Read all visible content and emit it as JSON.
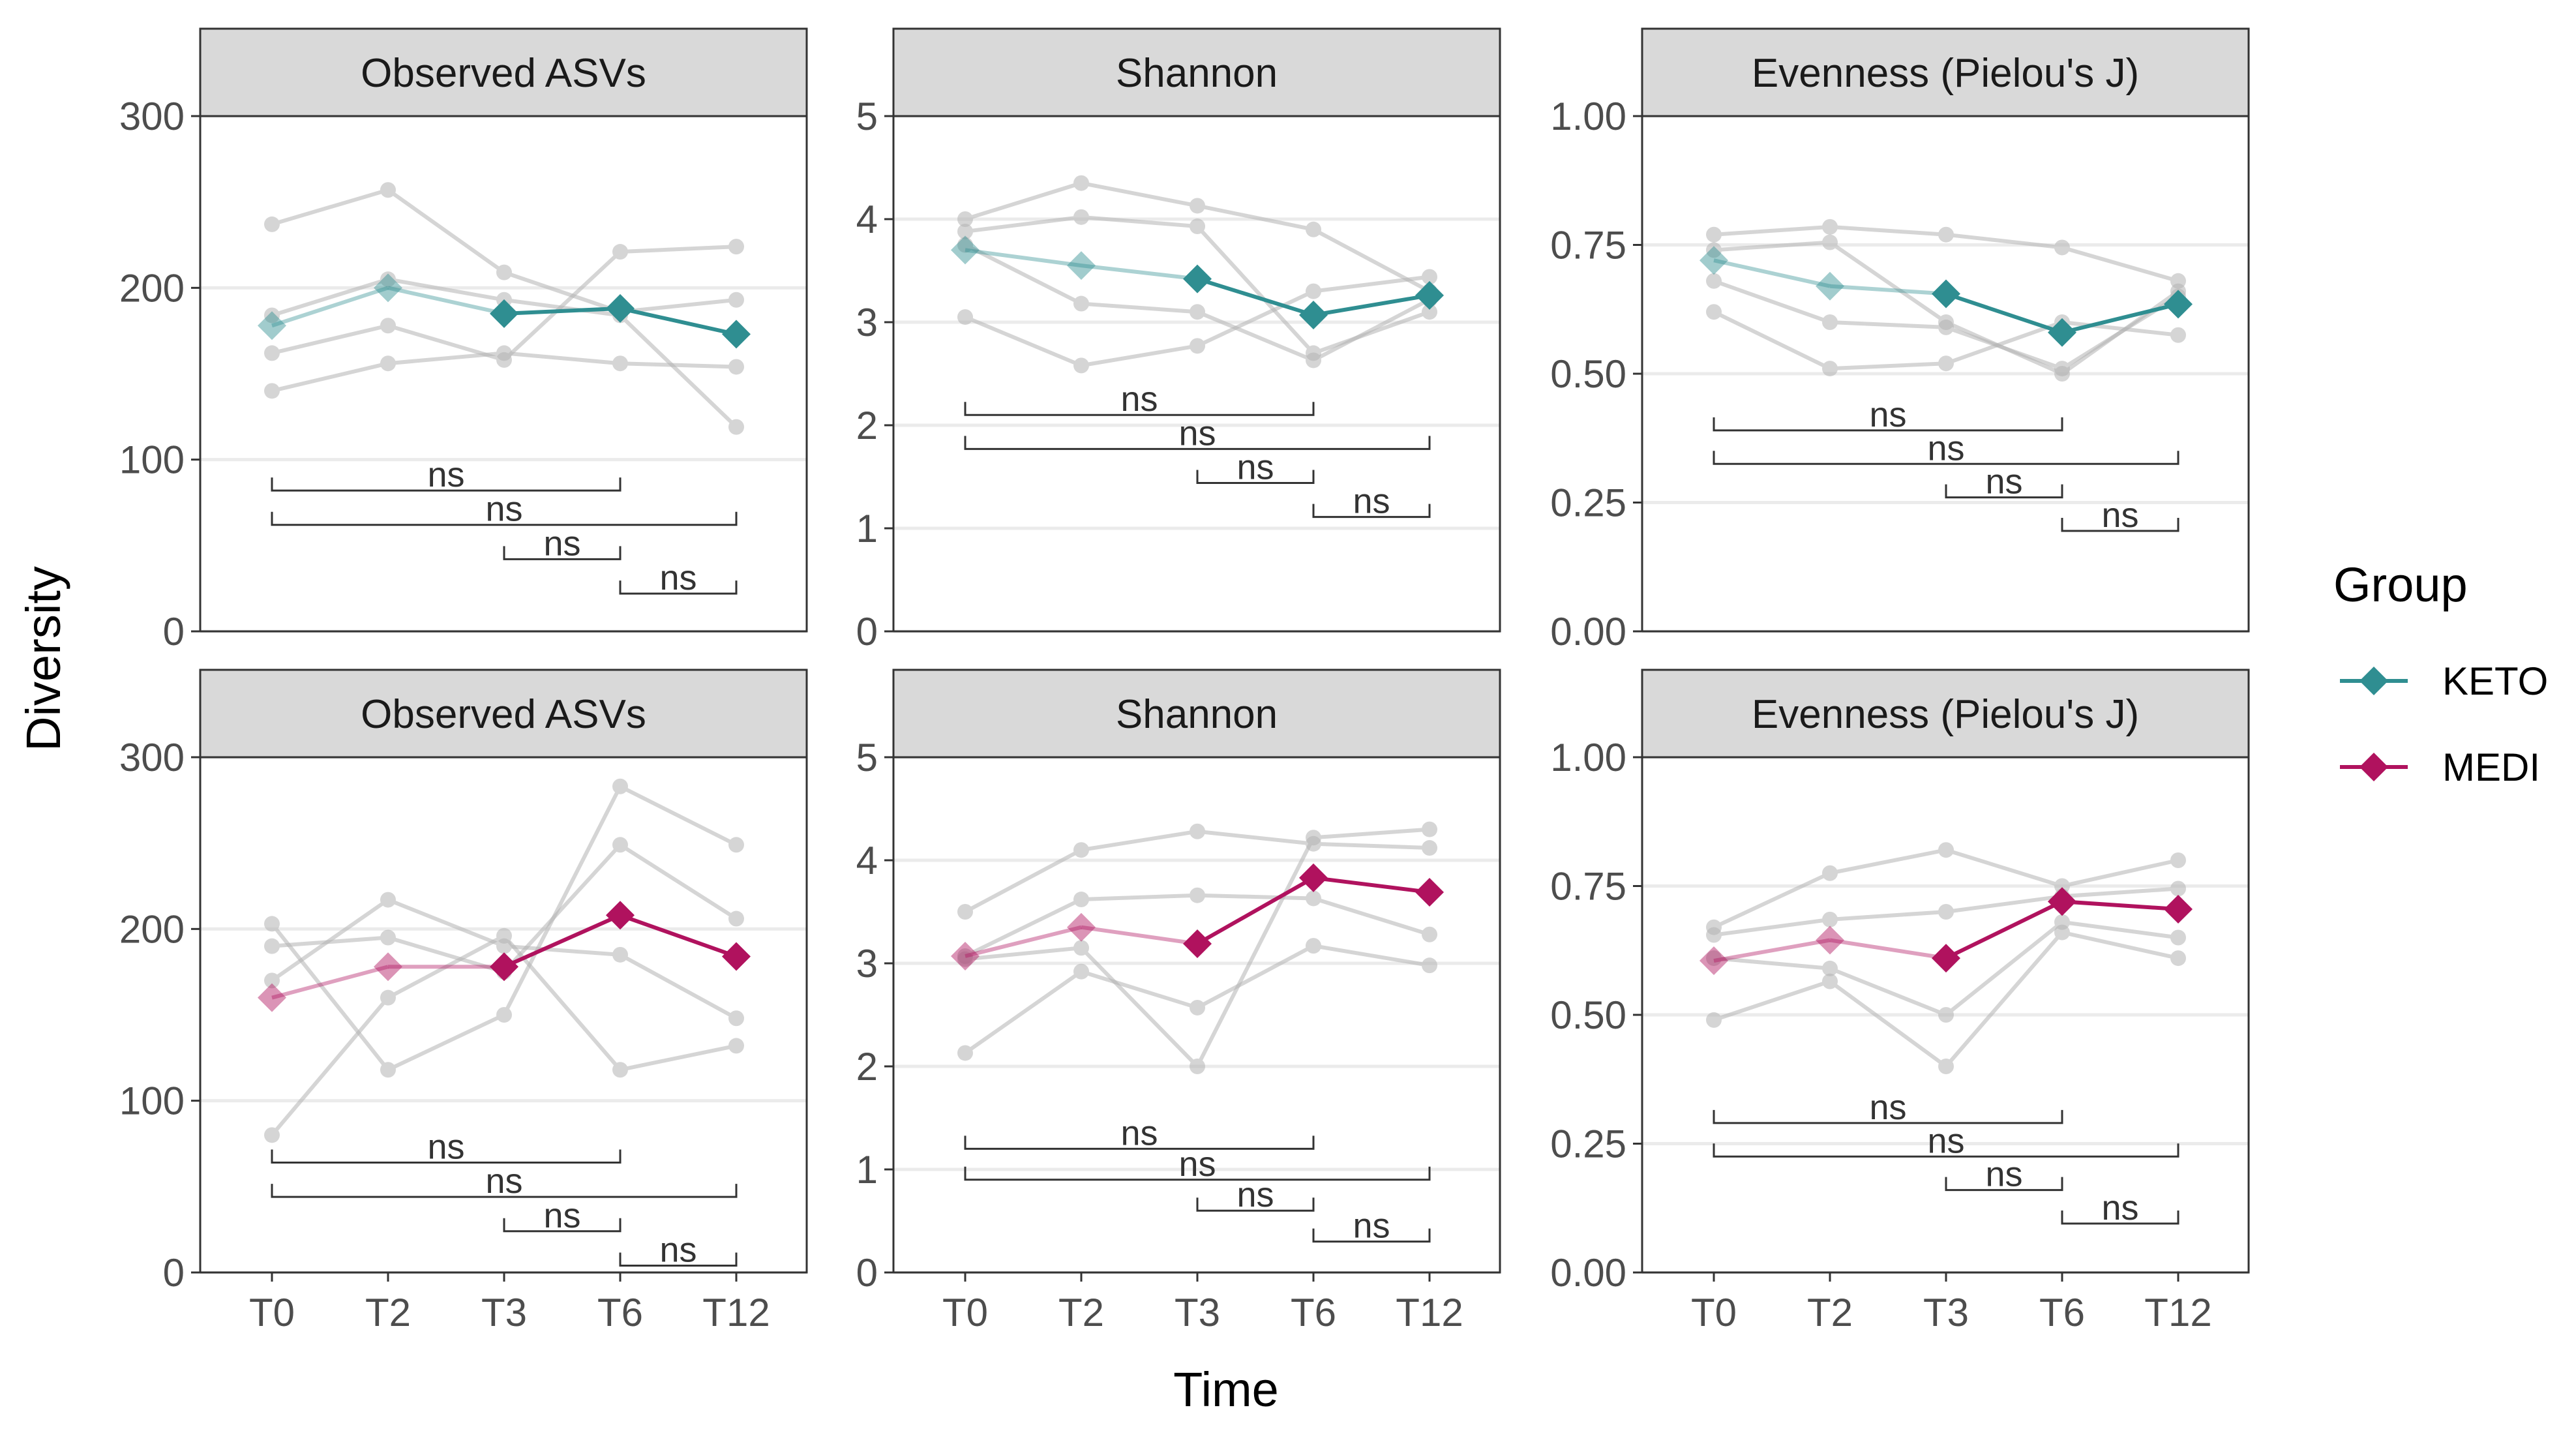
{
  "chart_data": {
    "type": "line",
    "layout": "faceted 2x3",
    "xlabel": "Time",
    "ylabel": "Diversity",
    "categories": [
      "T0",
      "T2",
      "T3",
      "T6",
      "T12"
    ],
    "legend": {
      "title": "Group",
      "placement": "right",
      "entries": [
        {
          "name": "KETO",
          "color": "#2f8e91"
        },
        {
          "name": "MEDI",
          "color": "#b0125e"
        }
      ]
    },
    "metrics": [
      {
        "id": "observed",
        "title": "Observed ASVs",
        "ylim": [
          0,
          300
        ],
        "ticks": [
          0,
          100,
          200,
          300
        ],
        "decimals": 0
      },
      {
        "id": "shannon",
        "title": "Shannon",
        "ylim": [
          0,
          5
        ],
        "ticks": [
          0,
          1,
          2,
          3,
          4,
          5
        ],
        "decimals": 0
      },
      {
        "id": "evenness",
        "title": "Evenness (Pielou's J)",
        "ylim": [
          0,
          1
        ],
        "ticks": [
          0,
          0.25,
          0.5,
          0.75,
          1
        ],
        "decimals": 2
      }
    ],
    "facets": [
      {
        "row": 0,
        "col": 0,
        "group": "KETO",
        "metric": "observed",
        "title": "Observed ASVs",
        "mean": [
          178,
          200,
          185,
          188,
          173
        ],
        "individuals": [
          [
            237,
            257,
            209,
            186,
            193
          ],
          [
            140,
            156,
            162,
            156,
            154
          ],
          [
            162,
            178,
            158,
            221,
            224
          ],
          [
            184,
            205,
            193,
            184,
            119
          ]
        ],
        "comparisons": [
          {
            "from": "T0",
            "to": "T6",
            "label": "ns",
            "level": 82
          },
          {
            "from": "T0",
            "to": "T12",
            "label": "ns",
            "level": 62
          },
          {
            "from": "T3",
            "to": "T6",
            "label": "ns",
            "level": 42
          },
          {
            "from": "T6",
            "to": "T12",
            "label": "ns",
            "level": 22
          }
        ]
      },
      {
        "row": 0,
        "col": 1,
        "group": "KETO",
        "metric": "shannon",
        "title": "Shannon",
        "mean": [
          3.7,
          3.55,
          3.42,
          3.07,
          3.26
        ],
        "individuals": [
          [
            4.0,
            4.35,
            4.13,
            3.9,
            3.3
          ],
          [
            3.05,
            2.58,
            2.77,
            3.3,
            3.44
          ],
          [
            3.88,
            4.02,
            3.93,
            2.7,
            3.1
          ],
          [
            3.75,
            3.18,
            3.1,
            2.63,
            3.22
          ]
        ],
        "comparisons": [
          {
            "from": "T0",
            "to": "T6",
            "label": "ns",
            "level": 2.1
          },
          {
            "from": "T0",
            "to": "T12",
            "label": "ns",
            "level": 1.77
          },
          {
            "from": "T3",
            "to": "T6",
            "label": "ns",
            "level": 1.44
          },
          {
            "from": "T6",
            "to": "T12",
            "label": "ns",
            "level": 1.11
          }
        ]
      },
      {
        "row": 0,
        "col": 2,
        "group": "KETO",
        "metric": "evenness",
        "title": "Evenness (Pielou's J)",
        "mean": [
          0.72,
          0.67,
          0.655,
          0.58,
          0.635
        ],
        "individuals": [
          [
            0.77,
            0.785,
            0.77,
            0.745,
            0.68
          ],
          [
            0.62,
            0.51,
            0.52,
            0.6,
            0.575
          ],
          [
            0.74,
            0.755,
            0.6,
            0.5,
            0.66
          ],
          [
            0.68,
            0.6,
            0.59,
            0.51,
            0.65
          ]
        ],
        "comparisons": [
          {
            "from": "T0",
            "to": "T6",
            "label": "ns",
            "level": 0.39
          },
          {
            "from": "T0",
            "to": "T12",
            "label": "ns",
            "level": 0.325
          },
          {
            "from": "T3",
            "to": "T6",
            "label": "ns",
            "level": 0.26
          },
          {
            "from": "T6",
            "to": "T12",
            "label": "ns",
            "level": 0.195
          }
        ]
      },
      {
        "row": 1,
        "col": 0,
        "group": "MEDI",
        "metric": "observed",
        "title": "Observed ASVs",
        "mean": [
          160,
          178,
          178,
          208,
          184
        ],
        "individuals": [
          [
            203,
            118,
            150,
            283,
            249
          ],
          [
            80,
            160,
            196,
            118,
            132
          ],
          [
            190,
            195,
            175,
            249,
            206
          ],
          [
            170,
            217,
            190,
            185,
            148
          ]
        ],
        "comparisons": [
          {
            "from": "T0",
            "to": "T6",
            "label": "ns",
            "level": 64
          },
          {
            "from": "T0",
            "to": "T12",
            "label": "ns",
            "level": 44
          },
          {
            "from": "T3",
            "to": "T6",
            "label": "ns",
            "level": 24
          },
          {
            "from": "T6",
            "to": "T12",
            "label": "ns",
            "level": 4
          }
        ]
      },
      {
        "row": 1,
        "col": 1,
        "group": "MEDI",
        "metric": "shannon",
        "title": "Shannon",
        "mean": [
          3.07,
          3.35,
          3.19,
          3.83,
          3.69
        ],
        "individuals": [
          [
            3.5,
            4.1,
            4.28,
            4.16,
            4.12
          ],
          [
            2.13,
            2.92,
            2.57,
            3.17,
            2.98
          ],
          [
            3.07,
            3.62,
            3.66,
            3.63,
            3.28
          ],
          [
            3.04,
            3.15,
            2.0,
            4.22,
            4.3
          ]
        ],
        "comparisons": [
          {
            "from": "T0",
            "to": "T6",
            "label": "ns",
            "level": 1.2
          },
          {
            "from": "T0",
            "to": "T12",
            "label": "ns",
            "level": 0.9
          },
          {
            "from": "T3",
            "to": "T6",
            "label": "ns",
            "level": 0.6
          },
          {
            "from": "T6",
            "to": "T12",
            "label": "ns",
            "level": 0.3
          }
        ]
      },
      {
        "row": 1,
        "col": 2,
        "group": "MEDI",
        "metric": "evenness",
        "title": "Evenness (Pielou's J)",
        "mean": [
          0.605,
          0.645,
          0.61,
          0.72,
          0.705
        ],
        "individuals": [
          [
            0.67,
            0.775,
            0.82,
            0.75,
            0.8
          ],
          [
            0.49,
            0.565,
            0.4,
            0.66,
            0.61
          ],
          [
            0.61,
            0.59,
            0.5,
            0.68,
            0.65
          ],
          [
            0.655,
            0.685,
            0.7,
            0.73,
            0.745
          ]
        ],
        "comparisons": [
          {
            "from": "T0",
            "to": "T6",
            "label": "ns",
            "level": 0.29
          },
          {
            "from": "T0",
            "to": "T12",
            "label": "ns",
            "level": 0.225
          },
          {
            "from": "T3",
            "to": "T6",
            "label": "ns",
            "level": 0.16
          },
          {
            "from": "T6",
            "to": "T12",
            "label": "ns",
            "level": 0.095
          }
        ]
      }
    ]
  }
}
